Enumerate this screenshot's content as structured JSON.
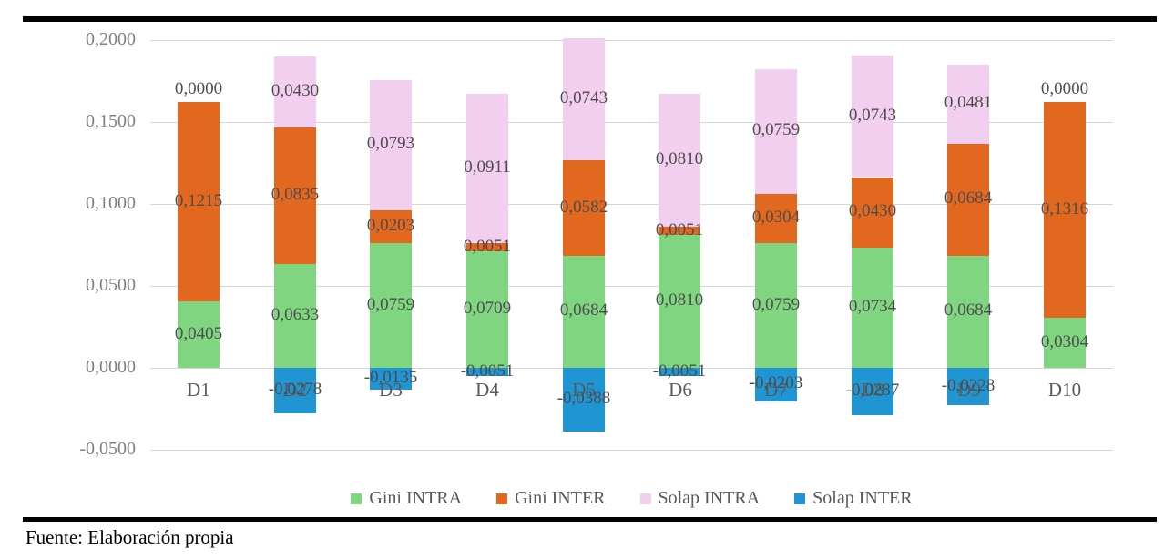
{
  "footer": {
    "source_note": "Fuente: Elaboración propia"
  },
  "chart_data": {
    "type": "bar",
    "stacked": true,
    "title": "",
    "xlabel": "",
    "ylabel": "",
    "categories": [
      "D1",
      "D2",
      "D3",
      "D4",
      "D5",
      "D6",
      "D7",
      "D8",
      "D9",
      "D10"
    ],
    "series": [
      {
        "name": "Gini INTRA",
        "color": "#80d580",
        "values": [
          0.0405,
          0.0633,
          0.0759,
          0.0709,
          0.0684,
          0.081,
          0.0759,
          0.0734,
          0.0684,
          0.0304
        ],
        "labels": [
          "0,0405",
          "0,0633",
          "0,0759",
          "0,0709",
          "0,0684",
          "0,0810",
          "0,0759",
          "0,0734",
          "0,0684",
          "0,0304"
        ]
      },
      {
        "name": "Gini INTER",
        "color": "#e2671f",
        "values": [
          0.1215,
          0.0835,
          0.0203,
          0.0051,
          0.0582,
          0.0051,
          0.0304,
          0.043,
          0.0684,
          0.1316
        ],
        "labels": [
          "0,1215",
          "0,0835",
          "0,0203",
          "0,0051",
          "0,0582",
          "0,0051",
          "0,0304",
          "0,0430",
          "0,0684",
          "0,1316"
        ]
      },
      {
        "name": "Solap INTRA",
        "color": "#f2ceef",
        "values": [
          0.0,
          0.043,
          0.0793,
          0.0911,
          0.0743,
          0.081,
          0.0759,
          0.0743,
          0.0481,
          0.0
        ],
        "labels": [
          "0,0000",
          "0,0430",
          "0,0793",
          "0,0911",
          "0,0743",
          "0,0810",
          "0,0759",
          "0,0743",
          "0,0481",
          "0,0000"
        ]
      },
      {
        "name": "Solap INTER",
        "color": "#1f95d4",
        "values": [
          0.0,
          -0.0278,
          -0.0135,
          -0.0051,
          -0.0388,
          -0.0051,
          -0.0203,
          -0.0287,
          -0.0228,
          0.0
        ],
        "labels": [
          null,
          "-0,0278",
          "-0,0135",
          "-0,0051",
          "-0,0388",
          "-0,0051",
          "-0,0203",
          "-0,0287",
          "-0,0228",
          null
        ]
      }
    ],
    "y_ticks": [
      {
        "label": "0,2000",
        "value": 0.2
      },
      {
        "label": "0,1500",
        "value": 0.15
      },
      {
        "label": "0,1000",
        "value": 0.1
      },
      {
        "label": "0,0500",
        "value": 0.05
      },
      {
        "label": "0,0000",
        "value": 0.0
      },
      {
        "label": "-0,0500",
        "value": -0.05
      }
    ],
    "ylim": [
      -0.05,
      0.2
    ],
    "grid": true,
    "legend_position": "bottom",
    "decimal_separator": ",",
    "text_color": "#4d4d4d",
    "tick_color": "#7f7f7f",
    "gridline_color": "#d6d6d6"
  }
}
